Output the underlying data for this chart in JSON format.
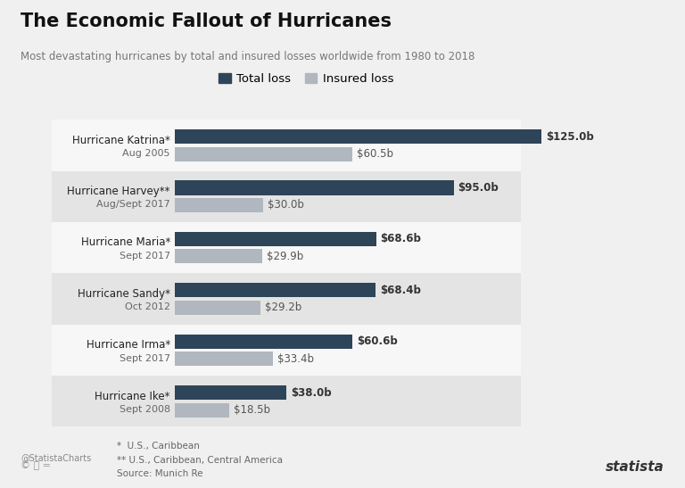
{
  "title": "The Economic Fallout of Hurricanes",
  "subtitle": "Most devastating hurricanes by total and insured losses worldwide from 1980 to 2018",
  "hurricanes": [
    {
      "name": "Hurricane Katrina*",
      "date": "Aug 2005",
      "total": 125.0,
      "insured": 60.5
    },
    {
      "name": "Hurricane Harvey**",
      "date": "Aug/Sept 2017",
      "total": 95.0,
      "insured": 30.0
    },
    {
      "name": "Hurricane Maria*",
      "date": "Sept 2017",
      "total": 68.6,
      "insured": 29.9
    },
    {
      "name": "Hurricane Sandy*",
      "date": "Oct 2012",
      "total": 68.4,
      "insured": 29.2
    },
    {
      "name": "Hurricane Irma*",
      "date": "Sept 2017",
      "total": 60.6,
      "insured": 33.4
    },
    {
      "name": "Hurricane Ike*",
      "date": "Sept 2008",
      "total": 38.0,
      "insured": 18.5
    }
  ],
  "total_color": "#2e4459",
  "insured_color": "#b0b7be",
  "background_color": "#f0f0f0",
  "row_colors_light": "#f7f7f7",
  "row_colors_dark": "#e4e4e4",
  "legend_total": "Total loss",
  "legend_insured": "Insured loss",
  "footnote1": "*  U.S., Caribbean",
  "footnote2": "** U.S., Caribbean, Central America",
  "source": "Source: Munich Re",
  "credit": "@StatistaCharts",
  "max_val": 140,
  "bar_height": 0.28,
  "bar_gap": 0.06
}
